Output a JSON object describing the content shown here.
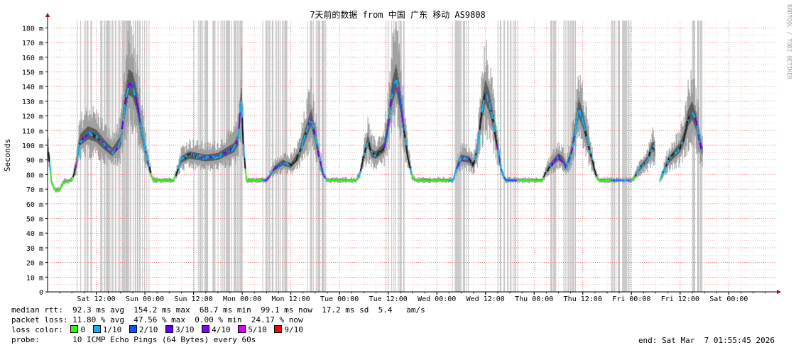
{
  "chart_data": {
    "type": "line",
    "title": "7天前的数据 from 中国 广东 移动 AS9808",
    "ylabel": "Seconds",
    "watermark": "RRDTOOL / TOBI OETIKER",
    "ylim": [
      0,
      185
    ],
    "y_ticks": [
      {
        "v": 0,
        "label": "0"
      },
      {
        "v": 10,
        "label": "10 m"
      },
      {
        "v": 20,
        "label": "20 m"
      },
      {
        "v": 30,
        "label": "30 m"
      },
      {
        "v": 40,
        "label": "40 m"
      },
      {
        "v": 50,
        "label": "50 m"
      },
      {
        "v": 60,
        "label": "60 m"
      },
      {
        "v": 70,
        "label": "70 m"
      },
      {
        "v": 80,
        "label": "80 m"
      },
      {
        "v": 90,
        "label": "90 m"
      },
      {
        "v": 100,
        "label": "100 m"
      },
      {
        "v": 110,
        "label": "110 m"
      },
      {
        "v": 120,
        "label": "120 m"
      },
      {
        "v": 130,
        "label": "130 m"
      },
      {
        "v": 140,
        "label": "140 m"
      },
      {
        "v": 150,
        "label": "150 m"
      },
      {
        "v": 160,
        "label": "160 m"
      },
      {
        "v": 170,
        "label": "170 m"
      },
      {
        "v": 180,
        "label": "180 m"
      }
    ],
    "xlim_hours": [
      0,
      179.5
    ],
    "x_ticks": [
      {
        "h": 12,
        "label": "Sat 12:00"
      },
      {
        "h": 24,
        "label": "Sun 00:00"
      },
      {
        "h": 36,
        "label": "Sun 12:00"
      },
      {
        "h": 48,
        "label": "Mon 00:00"
      },
      {
        "h": 60,
        "label": "Mon 12:00"
      },
      {
        "h": 72,
        "label": "Tue 00:00"
      },
      {
        "h": 84,
        "label": "Tue 12:00"
      },
      {
        "h": 96,
        "label": "Wed 00:00"
      },
      {
        "h": 108,
        "label": "Wed 12:00"
      },
      {
        "h": 120,
        "label": "Thu 00:00"
      },
      {
        "h": 132,
        "label": "Thu 12:00"
      },
      {
        "h": 144,
        "label": "Fri 00:00"
      },
      {
        "h": 156,
        "label": "Fri 12:00"
      },
      {
        "h": 168,
        "label": "Sat 00:00"
      }
    ],
    "median_profile_hours": [
      [
        0,
        101
      ],
      [
        1,
        74
      ],
      [
        2,
        69
      ],
      [
        3,
        70
      ],
      [
        4,
        75
      ],
      [
        6,
        76
      ],
      [
        7,
        85
      ],
      [
        8,
        103
      ],
      [
        10,
        108
      ],
      [
        12,
        106
      ],
      [
        14,
        100
      ],
      [
        16,
        95
      ],
      [
        18,
        102
      ],
      [
        19,
        125
      ],
      [
        20,
        142
      ],
      [
        21,
        140
      ],
      [
        22,
        130
      ],
      [
        23,
        112
      ],
      [
        24,
        98
      ],
      [
        25,
        85
      ],
      [
        26,
        76
      ],
      [
        28,
        76
      ],
      [
        31,
        76
      ],
      [
        32,
        82
      ],
      [
        33,
        90
      ],
      [
        35,
        93
      ],
      [
        37,
        92
      ],
      [
        39,
        91
      ],
      [
        42,
        92
      ],
      [
        44,
        95
      ],
      [
        46,
        98
      ],
      [
        47,
        103
      ],
      [
        47.8,
        133
      ],
      [
        48.3,
        100
      ],
      [
        49,
        76
      ],
      [
        52,
        76
      ],
      [
        54,
        76
      ],
      [
        55,
        80
      ],
      [
        56,
        84
      ],
      [
        58,
        88
      ],
      [
        60,
        86
      ],
      [
        62,
        93
      ],
      [
        63,
        102
      ],
      [
        64,
        110
      ],
      [
        65,
        118
      ],
      [
        66,
        106
      ],
      [
        67,
        92
      ],
      [
        68,
        80
      ],
      [
        69,
        76
      ],
      [
        72,
        76
      ],
      [
        76,
        76
      ],
      [
        77,
        80
      ],
      [
        78,
        92
      ],
      [
        79,
        103
      ],
      [
        80,
        94
      ],
      [
        81,
        93
      ],
      [
        83,
        98
      ],
      [
        84,
        113
      ],
      [
        85,
        135
      ],
      [
        86,
        145
      ],
      [
        87,
        130
      ],
      [
        88,
        108
      ],
      [
        89,
        90
      ],
      [
        90,
        78
      ],
      [
        91,
        76
      ],
      [
        98,
        76
      ],
      [
        100,
        76
      ],
      [
        101,
        85
      ],
      [
        102,
        91
      ],
      [
        104,
        90
      ],
      [
        105,
        86
      ],
      [
        106,
        97
      ],
      [
        107,
        120
      ],
      [
        108,
        136
      ],
      [
        109,
        128
      ],
      [
        110,
        115
      ],
      [
        111,
        98
      ],
      [
        112,
        82
      ],
      [
        113,
        76
      ],
      [
        119,
        76
      ],
      [
        122,
        76
      ],
      [
        123,
        82
      ],
      [
        124,
        86
      ],
      [
        126,
        92
      ],
      [
        127,
        90
      ],
      [
        128,
        85
      ],
      [
        129,
        93
      ],
      [
        130,
        107
      ],
      [
        131,
        125
      ],
      [
        132,
        117
      ],
      [
        133,
        105
      ],
      [
        134,
        93
      ],
      [
        135,
        82
      ],
      [
        136,
        76
      ],
      [
        144,
        76
      ],
      [
        145,
        79
      ],
      [
        146,
        84
      ],
      [
        148,
        90
      ],
      [
        149,
        98
      ],
      [
        149.7,
        99
      ],
      [
        150,
        76
      ],
      [
        151,
        76
      ],
      [
        153,
        89
      ],
      [
        154,
        92
      ],
      [
        155,
        95
      ],
      [
        156,
        98
      ],
      [
        157,
        105
      ],
      [
        158,
        118
      ],
      [
        159,
        123
      ],
      [
        160,
        115
      ],
      [
        161,
        100
      ],
      [
        161.5,
        96
      ]
    ],
    "packet_loss_hours": [
      [
        7,
        11
      ],
      [
        13,
        20
      ],
      [
        19,
        25
      ],
      [
        36,
        48
      ],
      [
        53,
        59
      ],
      [
        64,
        69
      ],
      [
        83,
        88
      ],
      [
        99,
        104
      ],
      [
        111,
        116
      ],
      [
        124,
        131
      ],
      [
        139,
        144
      ],
      [
        158.8,
        161.5
      ]
    ],
    "series": [
      {
        "name": "median rtt",
        "avg": "92.3 ms",
        "max": "154.2 ms",
        "min": "68.7 ms",
        "now": "99.1 ms",
        "sd": "17.2 ms",
        "am_s": "5.4"
      },
      {
        "name": "packet loss",
        "avg": "11.80 %",
        "max": "47.56 %",
        "min": "0.00 %",
        "now": "24.17 %"
      }
    ],
    "loss_colors": [
      {
        "label": "0",
        "color": "#26ff00"
      },
      {
        "label": "1/10",
        "color": "#00b8ff"
      },
      {
        "label": "2/10",
        "color": "#0059ff"
      },
      {
        "label": "3/10",
        "color": "#5e00ff"
      },
      {
        "label": "4/10",
        "color": "#7e00ff"
      },
      {
        "label": "5/10",
        "color": "#dd00ff"
      },
      {
        "label": "9/10",
        "color": "#ff0000"
      }
    ]
  },
  "legend": {
    "median_rtt_label": "median rtt:",
    "median_rtt_values": "92.3 ms avg  154.2 ms max  68.7 ms min  99.1 ms now  17.2 ms sd  5.4   am/s",
    "packet_loss_label": "packet loss:",
    "packet_loss_values": "11.80 % avg  47.56 % max  0.00 % min  24.17 % now",
    "loss_color_label": "loss color:",
    "probe_label": "probe:",
    "probe_value": "10 ICMP Echo Pings (64 Bytes) every 60s",
    "end_text": "end: Sat Mar  7 01:55:45 2026"
  }
}
